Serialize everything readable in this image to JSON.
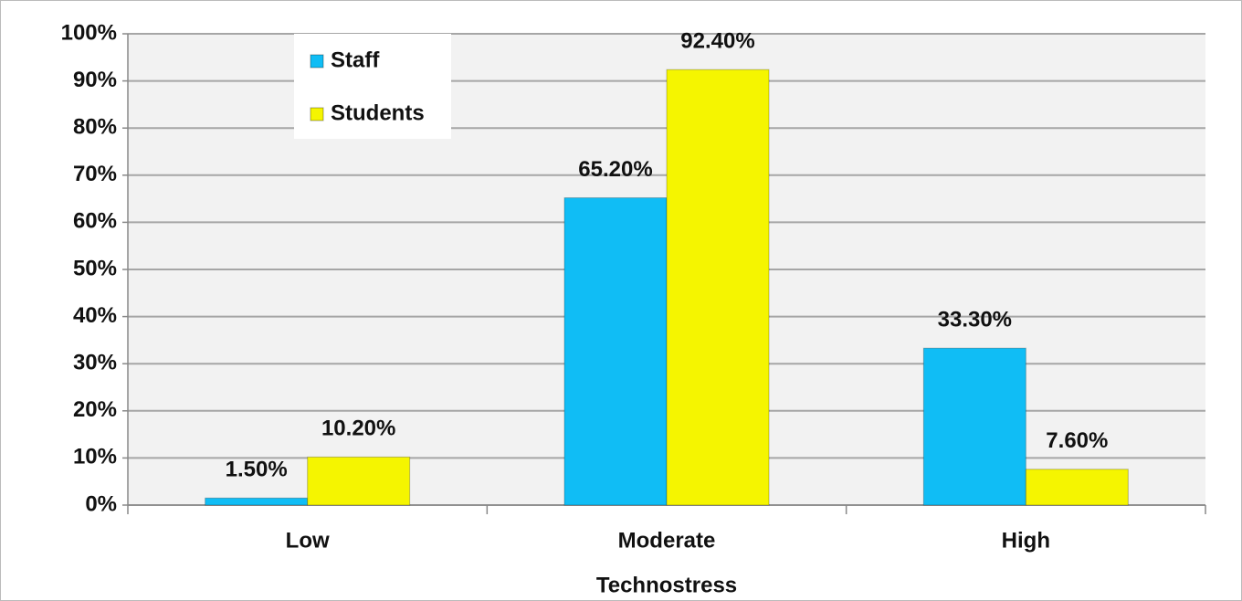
{
  "chart_data": {
    "type": "bar",
    "categories": [
      "Low",
      "Moderate",
      "High"
    ],
    "xlabel": "Technostress",
    "series": [
      {
        "name": "Staff",
        "color": "#10bdf5",
        "values": [
          1.5,
          65.2,
          33.3
        ],
        "value_labels": [
          "1.50%",
          "65.20%",
          "33.30%"
        ]
      },
      {
        "name": "Students",
        "color": "#f5f500",
        "values": [
          10.2,
          92.4,
          7.6
        ],
        "value_labels": [
          "10.20%",
          "92.40%",
          "7.60%"
        ]
      }
    ],
    "ylim": [
      0,
      100
    ],
    "yticks": [
      {
        "value": 0,
        "label": "0%"
      },
      {
        "value": 10,
        "label": "10%"
      },
      {
        "value": 20,
        "label": "20%"
      },
      {
        "value": 30,
        "label": "30%"
      },
      {
        "value": 40,
        "label": "40%"
      },
      {
        "value": 50,
        "label": "50%"
      },
      {
        "value": 60,
        "label": "60%"
      },
      {
        "value": 70,
        "label": "70%"
      },
      {
        "value": 80,
        "label": "80%"
      },
      {
        "value": 90,
        "label": "90%"
      },
      {
        "value": 100,
        "label": "100%"
      }
    ],
    "grid": true,
    "legend": "upper left"
  }
}
